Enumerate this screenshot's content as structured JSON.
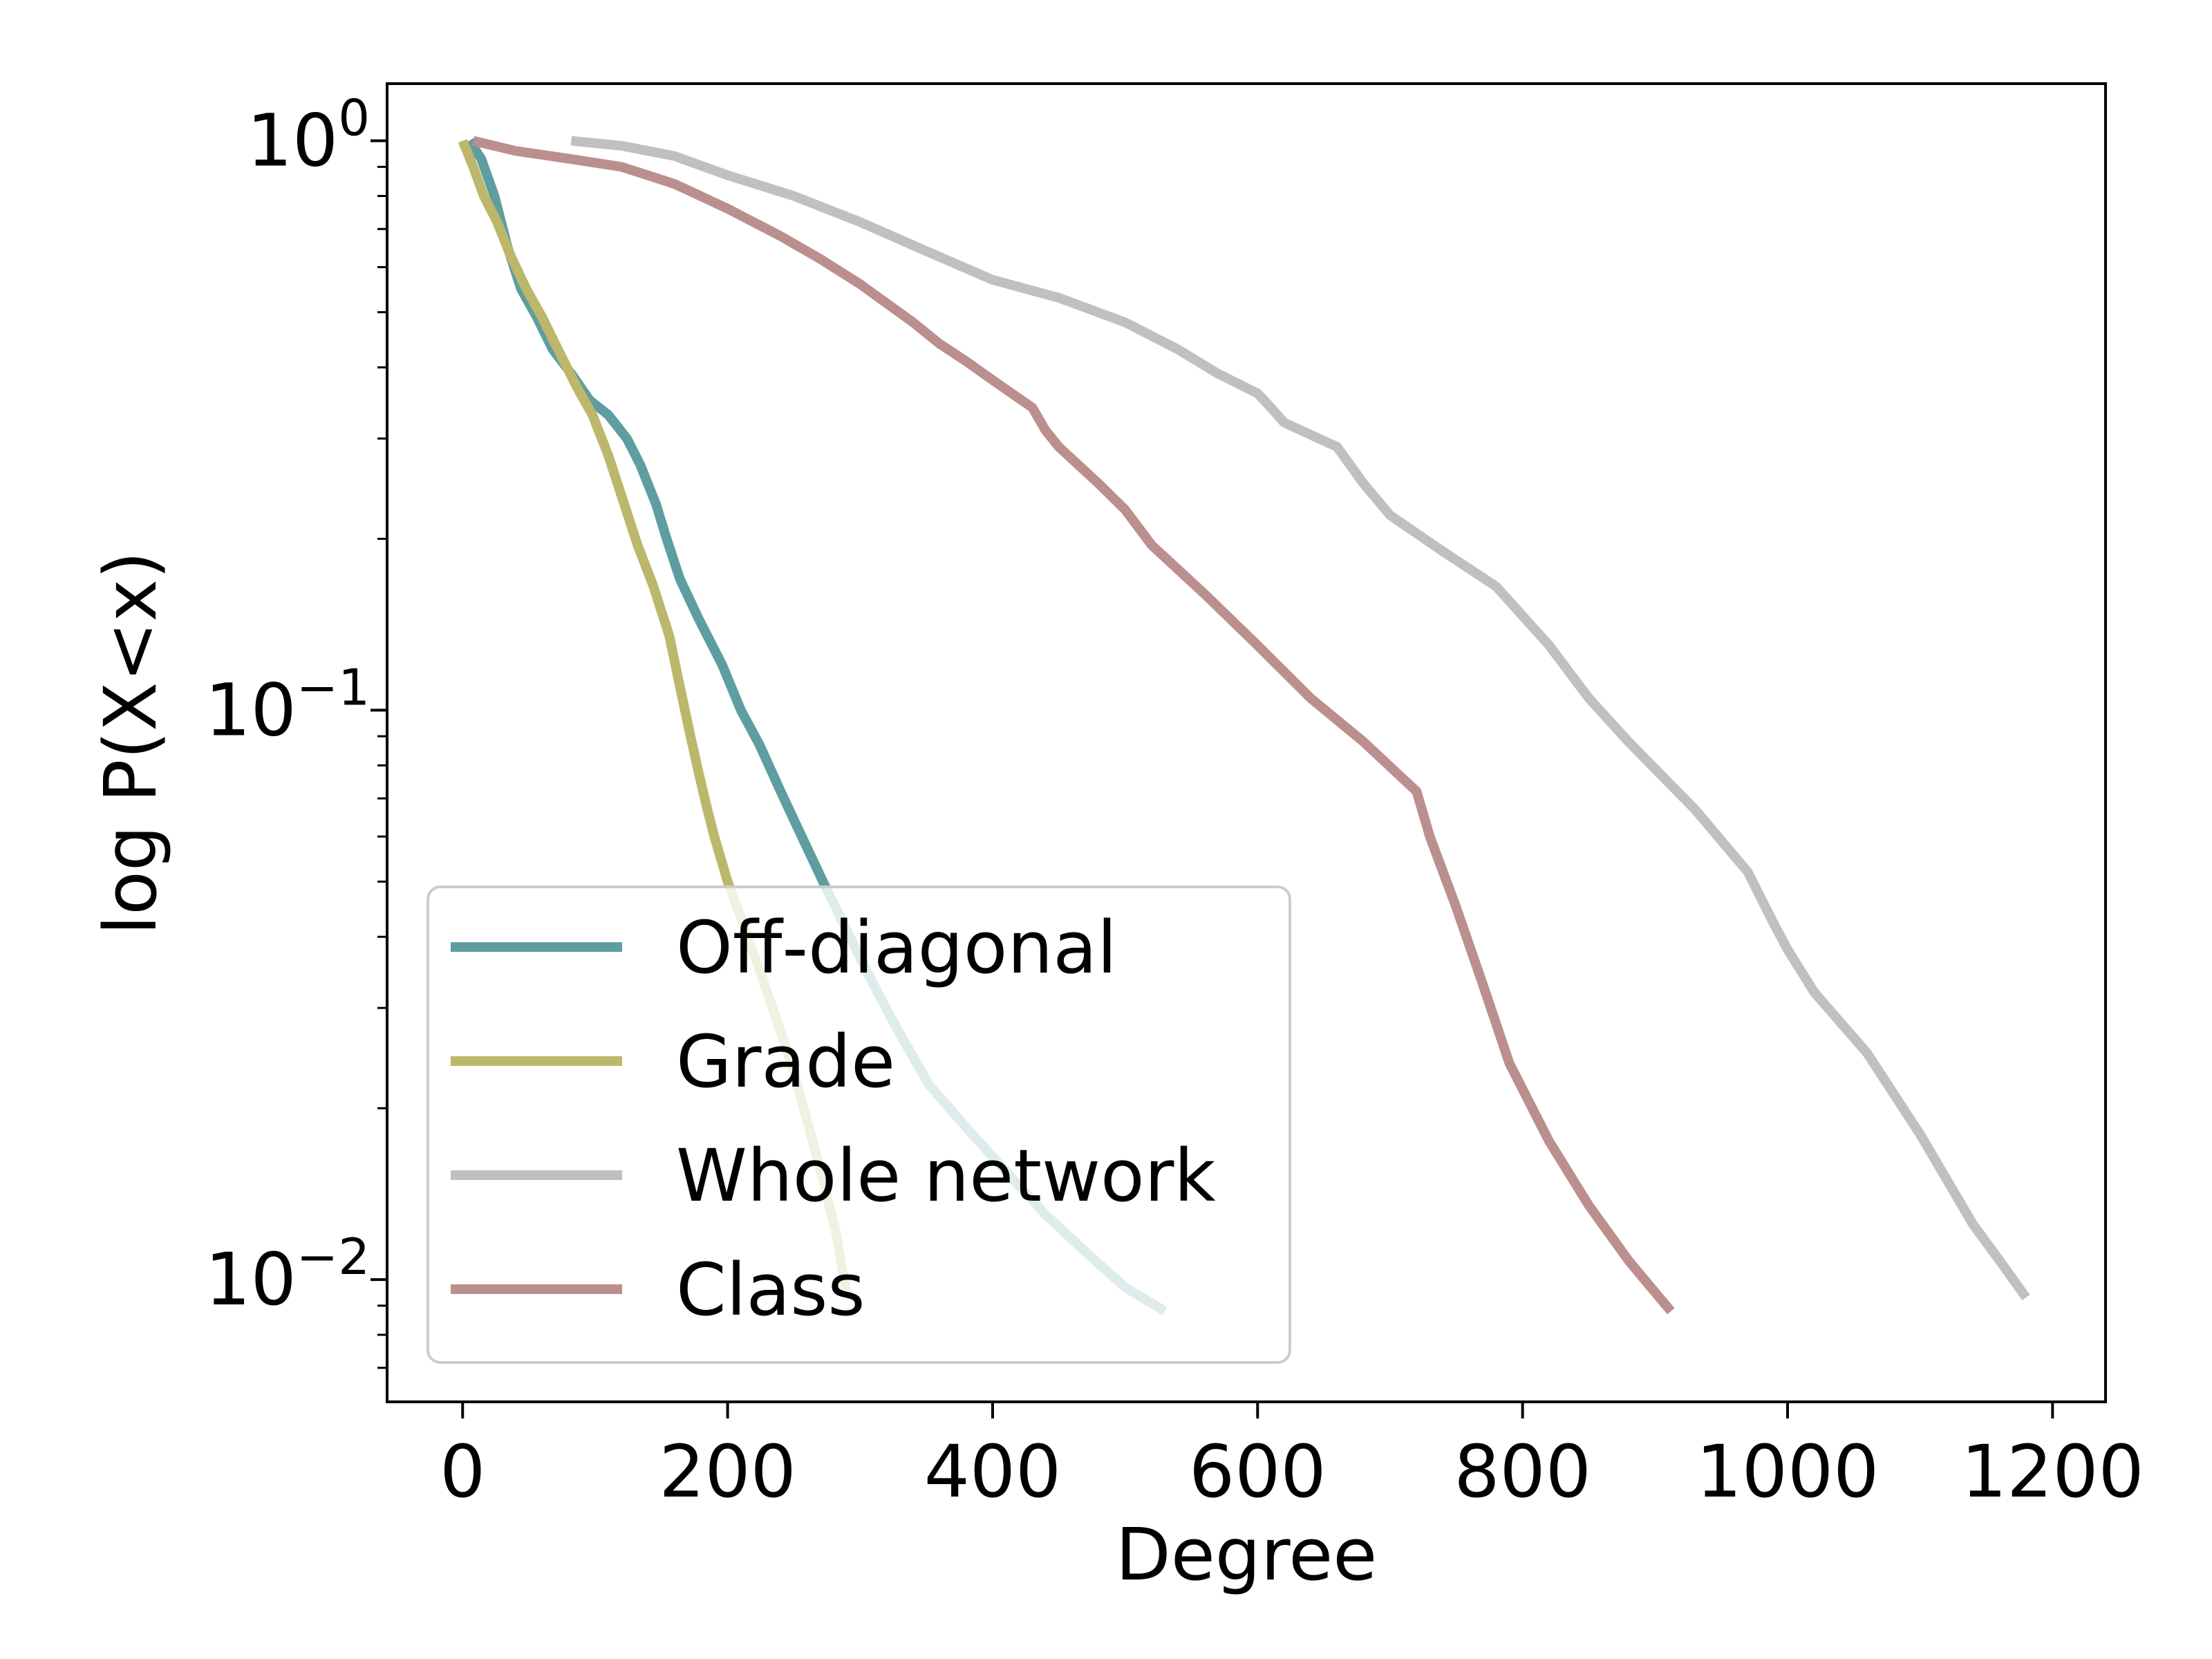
{
  "chart_data": {
    "type": "line",
    "title": "",
    "xlabel": "Degree",
    "ylabel": "log P(X<x)",
    "xlim": [
      -57,
      1240
    ],
    "ylim": [
      0.0061,
      1.26
    ],
    "xscale": "linear",
    "yscale": "log",
    "grid": false,
    "legend_position": "lower-left",
    "x_ticks": [
      {
        "value": 0,
        "label": "0"
      },
      {
        "value": 200,
        "label": "200"
      },
      {
        "value": 400,
        "label": "400"
      },
      {
        "value": 600,
        "label": "600"
      },
      {
        "value": 800,
        "label": "800"
      },
      {
        "value": 1000,
        "label": "1000"
      },
      {
        "value": 1200,
        "label": "1200"
      }
    ],
    "y_ticks": [
      {
        "value": 1,
        "base": "10",
        "exp": "0"
      },
      {
        "value": 0.1,
        "base": "10",
        "exp": "−1"
      },
      {
        "value": 0.01,
        "base": "10",
        "exp": "−2"
      }
    ],
    "series": [
      {
        "name": "Off-diagonal",
        "color": "#5f9ea0",
        "x": [
          5,
          14,
          24,
          34,
          44,
          56,
          68,
          82,
          96,
          110,
          124,
          134,
          146,
          154,
          164,
          178,
          196,
          210,
          224,
          240,
          256,
          272,
          290,
          310,
          330,
          352,
          380,
          410,
          440,
          470,
          500,
          530
        ],
        "y": [
          1.0,
          0.93,
          0.8,
          0.65,
          0.55,
          0.49,
          0.43,
          0.39,
          0.35,
          0.33,
          0.3,
          0.27,
          0.23,
          0.2,
          0.17,
          0.145,
          0.12,
          0.1,
          0.087,
          0.072,
          0.06,
          0.05,
          0.041,
          0.033,
          0.027,
          0.022,
          0.0185,
          0.0155,
          0.013,
          0.0112,
          0.0097,
          0.0088
        ]
      },
      {
        "name": "Grade",
        "color": "#bdb76b",
        "x": [
          0,
          8,
          16,
          26,
          36,
          48,
          60,
          72,
          86,
          98,
          110,
          122,
          132,
          144,
          156,
          164,
          172,
          178,
          184,
          190,
          200,
          212,
          224,
          236,
          248,
          260,
          272,
          282,
          290
        ],
        "y": [
          1.0,
          0.9,
          0.8,
          0.72,
          0.63,
          0.55,
          0.49,
          0.43,
          0.37,
          0.33,
          0.28,
          0.23,
          0.195,
          0.165,
          0.135,
          0.11,
          0.09,
          0.078,
          0.068,
          0.06,
          0.05,
          0.042,
          0.035,
          0.029,
          0.024,
          0.019,
          0.015,
          0.012,
          0.0094
        ]
      },
      {
        "name": "Whole network",
        "color": "#c0c0c0",
        "x": [
          82,
          120,
          160,
          200,
          250,
          300,
          350,
          400,
          450,
          500,
          540,
          570,
          600,
          610,
          620,
          660,
          680,
          700,
          740,
          780,
          820,
          850,
          880,
          930,
          970,
          990,
          1000,
          1020,
          1060,
          1100,
          1140,
          1160,
          1180
        ],
        "y": [
          1.0,
          0.98,
          0.94,
          0.87,
          0.8,
          0.72,
          0.64,
          0.57,
          0.53,
          0.48,
          0.43,
          0.39,
          0.36,
          0.34,
          0.32,
          0.29,
          0.25,
          0.22,
          0.19,
          0.165,
          0.13,
          0.105,
          0.088,
          0.067,
          0.052,
          0.042,
          0.038,
          0.032,
          0.025,
          0.018,
          0.0125,
          0.0108,
          0.0093
        ]
      },
      {
        "name": "Class",
        "color": "#bc8f8f",
        "x": [
          8,
          40,
          80,
          120,
          160,
          200,
          240,
          270,
          300,
          340,
          360,
          380,
          400,
          430,
          440,
          450,
          480,
          500,
          520,
          560,
          600,
          640,
          680,
          720,
          730,
          750,
          770,
          790,
          820,
          850,
          880,
          900,
          912
        ],
        "y": [
          1.0,
          0.96,
          0.93,
          0.9,
          0.84,
          0.76,
          0.68,
          0.62,
          0.56,
          0.48,
          0.44,
          0.41,
          0.38,
          0.34,
          0.31,
          0.29,
          0.25,
          0.225,
          0.195,
          0.16,
          0.13,
          0.105,
          0.088,
          0.072,
          0.06,
          0.045,
          0.033,
          0.024,
          0.0175,
          0.0135,
          0.0108,
          0.0095,
          0.0088
        ]
      }
    ]
  }
}
